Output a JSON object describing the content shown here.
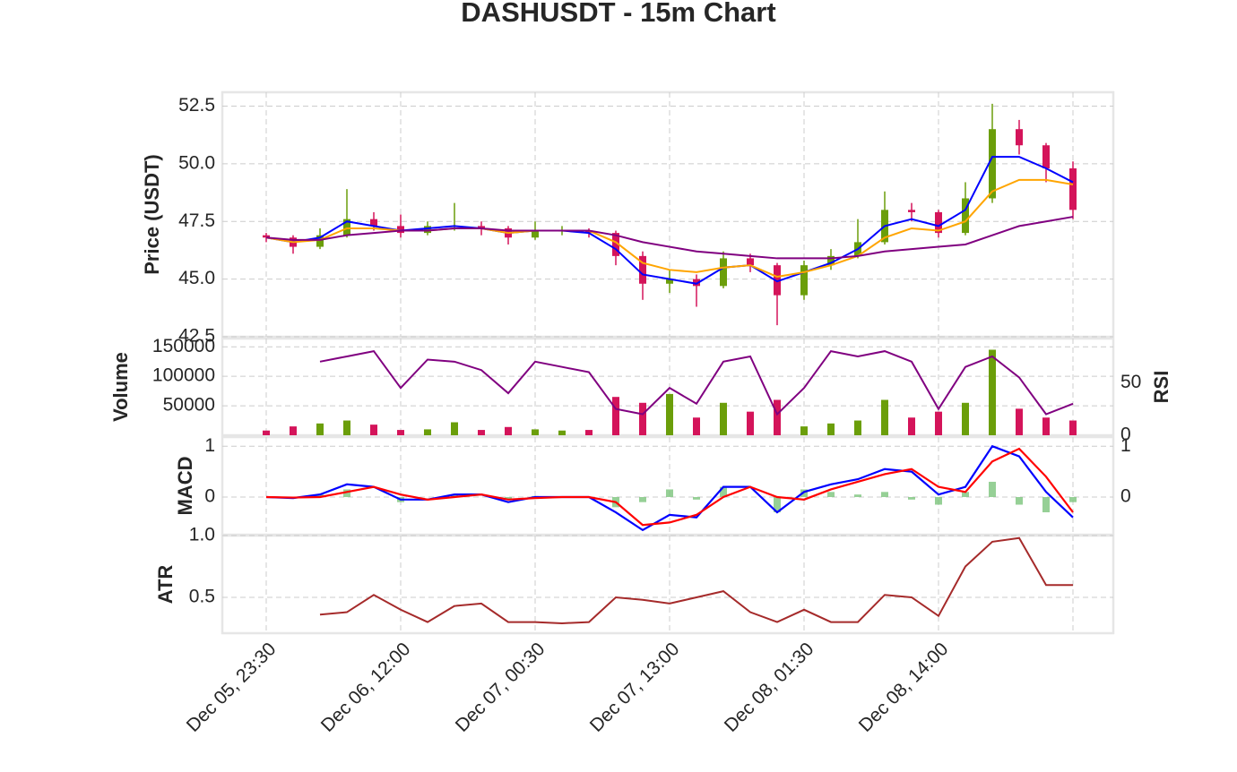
{
  "chart_data": {
    "type": "candlestick",
    "title": "DASHUSDT - 15m Chart",
    "categories": [
      "Dec 05, 23:30",
      null,
      null,
      null,
      null,
      "Dec 06, 12:00",
      null,
      null,
      null,
      null,
      "Dec 07, 00:30",
      null,
      null,
      null,
      null,
      "Dec 07, 13:00",
      null,
      null,
      null,
      null,
      "Dec 08, 01:30",
      null,
      null,
      null,
      null,
      "Dec 08, 14:00",
      null,
      null,
      null,
      null,
      null
    ],
    "open": [
      46.9,
      46.8,
      46.4,
      46.9,
      47.6,
      47.3,
      47.0,
      47.3,
      47.3,
      47.2,
      46.8,
      47.1,
      47.1,
      47.0,
      46.0,
      44.8,
      45.0,
      44.7,
      45.9,
      45.6,
      44.3,
      45.6,
      46.0,
      46.6,
      48.0,
      47.9,
      47.0,
      48.5,
      51.5,
      50.8,
      49.8
    ],
    "high": [
      47.0,
      46.9,
      47.2,
      48.9,
      47.9,
      47.8,
      47.5,
      48.3,
      47.5,
      47.3,
      47.5,
      47.3,
      47.2,
      47.1,
      46.2,
      45.4,
      45.2,
      46.2,
      46.1,
      45.7,
      45.8,
      46.3,
      47.6,
      48.8,
      48.3,
      48.0,
      49.2,
      52.6,
      51.9,
      50.9,
      50.1
    ],
    "low": [
      46.6,
      46.1,
      46.3,
      46.8,
      47.1,
      46.8,
      46.9,
      47.1,
      46.9,
      46.5,
      46.7,
      46.9,
      46.8,
      45.6,
      44.1,
      44.4,
      43.8,
      44.6,
      45.3,
      43.0,
      44.1,
      45.4,
      45.9,
      46.5,
      47.5,
      46.8,
      46.9,
      48.3,
      50.4,
      49.2,
      47.6
    ],
    "close": [
      46.8,
      46.4,
      46.9,
      47.6,
      47.3,
      47.0,
      47.3,
      47.3,
      47.2,
      46.8,
      47.1,
      47.1,
      47.0,
      46.0,
      44.8,
      45.0,
      44.7,
      45.9,
      45.6,
      44.3,
      45.6,
      46.0,
      46.6,
      48.0,
      47.9,
      47.0,
      48.5,
      51.5,
      50.8,
      49.8,
      48.0
    ],
    "up_color": "#6b9e0a",
    "down_color": "#d4145a",
    "ylabel": "Price (USDT)",
    "ylim": [
      42.5,
      53.1
    ],
    "yticks": [
      42.5,
      {
        "value": 45,
        "label": "45.0"
      },
      47.5,
      {
        "value": 50,
        "label": "50.0"
      },
      52.5
    ],
    "grid": true,
    "moving_averages": [
      {
        "color": "#0000ff",
        "values": [
          46.8,
          46.6,
          46.8,
          47.5,
          47.3,
          47.1,
          47.2,
          47.3,
          47.2,
          47.0,
          47.1,
          47.1,
          47.0,
          46.3,
          45.2,
          45.0,
          44.8,
          45.5,
          45.6,
          44.9,
          45.3,
          45.7,
          46.3,
          47.3,
          47.6,
          47.3,
          48.0,
          50.3,
          50.3,
          49.8,
          49.2
        ]
      },
      {
        "color": "#ffa500",
        "values": [
          46.8,
          46.6,
          46.7,
          47.2,
          47.2,
          47.1,
          47.1,
          47.2,
          47.2,
          47.0,
          47.1,
          47.1,
          47.1,
          46.6,
          45.7,
          45.4,
          45.3,
          45.5,
          45.6,
          45.1,
          45.3,
          45.6,
          46.0,
          46.8,
          47.2,
          47.1,
          47.5,
          48.8,
          49.3,
          49.3,
          49.1
        ]
      },
      {
        "color": "#800080",
        "values": [
          46.8,
          46.7,
          46.7,
          46.9,
          47.0,
          47.1,
          47.1,
          47.2,
          47.2,
          47.1,
          47.1,
          47.1,
          47.1,
          46.9,
          46.6,
          46.4,
          46.2,
          46.1,
          46.0,
          45.9,
          45.9,
          45.9,
          46.0,
          46.2,
          46.3,
          46.4,
          46.5,
          46.9,
          47.3,
          47.5,
          47.7
        ]
      }
    ],
    "volume": {
      "ylabel": "Volume",
      "ylim": [
        0,
        164000
      ],
      "yticks": [
        50000,
        100000,
        150000
      ],
      "values": [
        8000,
        15000,
        20000,
        25000,
        18000,
        9000,
        10000,
        22000,
        9000,
        14000,
        10000,
        8000,
        9000,
        65000,
        55000,
        70000,
        30000,
        55000,
        40000,
        60000,
        15000,
        20000,
        25000,
        60000,
        30000,
        40000,
        55000,
        145000,
        45000,
        30000,
        25000
      ]
    },
    "rsi": {
      "ylabel": "RSI",
      "ylim": [
        0,
        92
      ],
      "yticks": [
        0,
        50
      ],
      "color": "#800080",
      "values": [
        null,
        null,
        70,
        75,
        80,
        45,
        72,
        70,
        62,
        40,
        70,
        65,
        60,
        25,
        20,
        45,
        30,
        70,
        75,
        20,
        45,
        80,
        75,
        80,
        70,
        25,
        65,
        75,
        55,
        20,
        30
      ]
    },
    "macd": {
      "ylabel": "MACD",
      "ylim": [
        -0.74,
        1.18
      ],
      "yticks": [
        0,
        1
      ],
      "y2ticks": [
        0,
        1
      ],
      "series": [
        {
          "color": "#0000ff",
          "values": [
            0,
            -0.02,
            0.05,
            0.25,
            0.2,
            -0.05,
            -0.05,
            0.05,
            0.05,
            -0.1,
            0,
            0,
            0,
            -0.3,
            -0.65,
            -0.35,
            -0.4,
            0.2,
            0.2,
            -0.3,
            0.1,
            0.25,
            0.35,
            0.55,
            0.5,
            0.05,
            0.2,
            1.0,
            0.8,
            0.1,
            -0.4
          ]
        },
        {
          "color": "#ff0000",
          "values": [
            0,
            -0.01,
            0,
            0.1,
            0.2,
            0.05,
            -0.05,
            0,
            0.05,
            -0.05,
            -0.02,
            0,
            0,
            -0.1,
            -0.55,
            -0.5,
            -0.35,
            0,
            0.2,
            0,
            -0.05,
            0.15,
            0.3,
            0.45,
            0.55,
            0.2,
            0.1,
            0.7,
            0.95,
            0.4,
            -0.3
          ]
        }
      ],
      "histogram": {
        "color": "#7cc47c",
        "values": [
          0,
          -0.01,
          0.05,
          0.15,
          0,
          -0.1,
          0,
          0.05,
          0,
          -0.05,
          0.02,
          0,
          0,
          -0.2,
          -0.1,
          0.15,
          -0.05,
          0.2,
          0,
          -0.3,
          0.15,
          0.1,
          0.05,
          0.1,
          -0.05,
          -0.15,
          0.1,
          0.3,
          -0.15,
          -0.3,
          -0.1
        ]
      }
    },
    "atr": {
      "ylabel": "ATR",
      "ylim": [
        0.21,
        1.0
      ],
      "yticks": [
        0.5,
        {
          "value": 1.0,
          "label": "1.0"
        }
      ],
      "color": "#a52a2a",
      "values": [
        null,
        null,
        0.36,
        0.38,
        0.52,
        0.4,
        0.3,
        0.43,
        0.45,
        0.3,
        0.3,
        0.29,
        0.3,
        0.5,
        0.48,
        0.45,
        0.5,
        0.55,
        0.38,
        0.3,
        0.4,
        0.3,
        0.3,
        0.52,
        0.5,
        0.35,
        0.75,
        0.95,
        0.98,
        0.6,
        0.6
      ]
    }
  }
}
